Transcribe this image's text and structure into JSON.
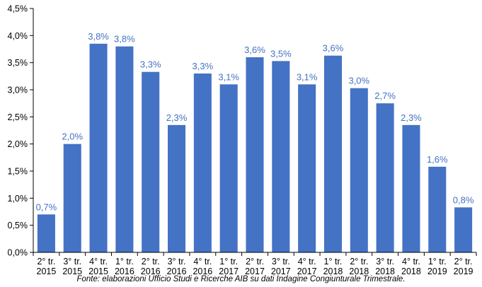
{
  "colors": {
    "bar": "#4472C4",
    "label": "#4472C4",
    "axis": "#000000"
  },
  "chart_data": {
    "type": "bar",
    "title": "",
    "xlabel": "",
    "ylabel": "",
    "grid": false,
    "legend": "none",
    "ylim": [
      0,
      4.5
    ],
    "yticks": [
      "0,0%",
      "0,5%",
      "1,0%",
      "1,5%",
      "2,0%",
      "2,5%",
      "3,0%",
      "3,5%",
      "4,0%",
      "4,5%"
    ],
    "categories": [
      [
        "2° tr.",
        "2015"
      ],
      [
        "3° tr.",
        "2015"
      ],
      [
        "4° tr.",
        "2015"
      ],
      [
        "1° tr.",
        "2016"
      ],
      [
        "2° tr.",
        "2016"
      ],
      [
        "3° tr.",
        "2016"
      ],
      [
        "4° tr.",
        "2016"
      ],
      [
        "1° tr.",
        "2017"
      ],
      [
        "2° tr.",
        "2017"
      ],
      [
        "3° tr.",
        "2017"
      ],
      [
        "4° tr.",
        "2017"
      ],
      [
        "1° tr.",
        "2018"
      ],
      [
        "2° tr.",
        "2018"
      ],
      [
        "3° tr.",
        "2018"
      ],
      [
        "4° tr.",
        "2018"
      ],
      [
        "1° tr.",
        "2019"
      ],
      [
        "2° tr.",
        "2019"
      ]
    ],
    "values": [
      0.7,
      2.0,
      3.85,
      3.8,
      3.33,
      2.35,
      3.3,
      3.1,
      3.6,
      3.53,
      3.1,
      3.63,
      3.03,
      2.75,
      2.35,
      1.58,
      0.83
    ],
    "labels": [
      "0,7%",
      "2,0%",
      "3,8%",
      "3,8%",
      "3,3%",
      "2,3%",
      "3,3%",
      "3,1%",
      "3,6%",
      "3,5%",
      "3,1%",
      "3,6%",
      "3,0%",
      "2,7%",
      "2,3%",
      "1,6%",
      "0,8%"
    ]
  },
  "source_note": "Fonte: elaborazioni Ufficio Studi e Ricerche AIB su dati Indagine Congiunturale Trimestrale."
}
